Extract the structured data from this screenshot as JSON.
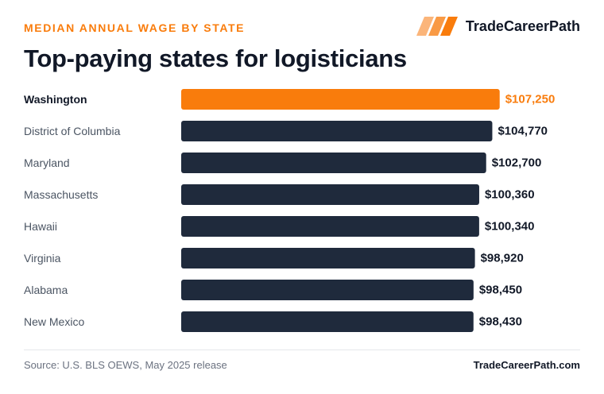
{
  "header": {
    "kicker": "MEDIAN ANNUAL WAGE BY STATE",
    "title": "Top-paying states for logisticians"
  },
  "brand": {
    "name": "TradeCareerPath",
    "icon": "three-slanted-stripes-logo",
    "colors": [
      "#fbb57a",
      "#f99a45",
      "#f97c0c"
    ]
  },
  "footer": {
    "source": "Source: U.S. BLS OEWS, May 2025 release",
    "site": "TradeCareerPath.com"
  },
  "colors": {
    "highlight": "#f97c0c",
    "bar": "#1f2a3c",
    "highlight_label": "#111827",
    "label": "#4b5563",
    "value": "#111827"
  },
  "chart_data": {
    "type": "bar",
    "orientation": "horizontal",
    "categories": [
      "Washington",
      "District of Columbia",
      "Maryland",
      "Massachusetts",
      "Hawaii",
      "Virginia",
      "Alabama",
      "New Mexico"
    ],
    "values": [
      107250,
      104770,
      102700,
      100360,
      100340,
      98920,
      98450,
      98430
    ],
    "value_labels": [
      "$107,250",
      "$104,770",
      "$102,700",
      "$100,360",
      "$100,340",
      "$98,920",
      "$98,450",
      "$98,430"
    ],
    "highlight_index": 0,
    "xlim": [
      0,
      110000
    ],
    "grid": false,
    "legend": "none"
  }
}
